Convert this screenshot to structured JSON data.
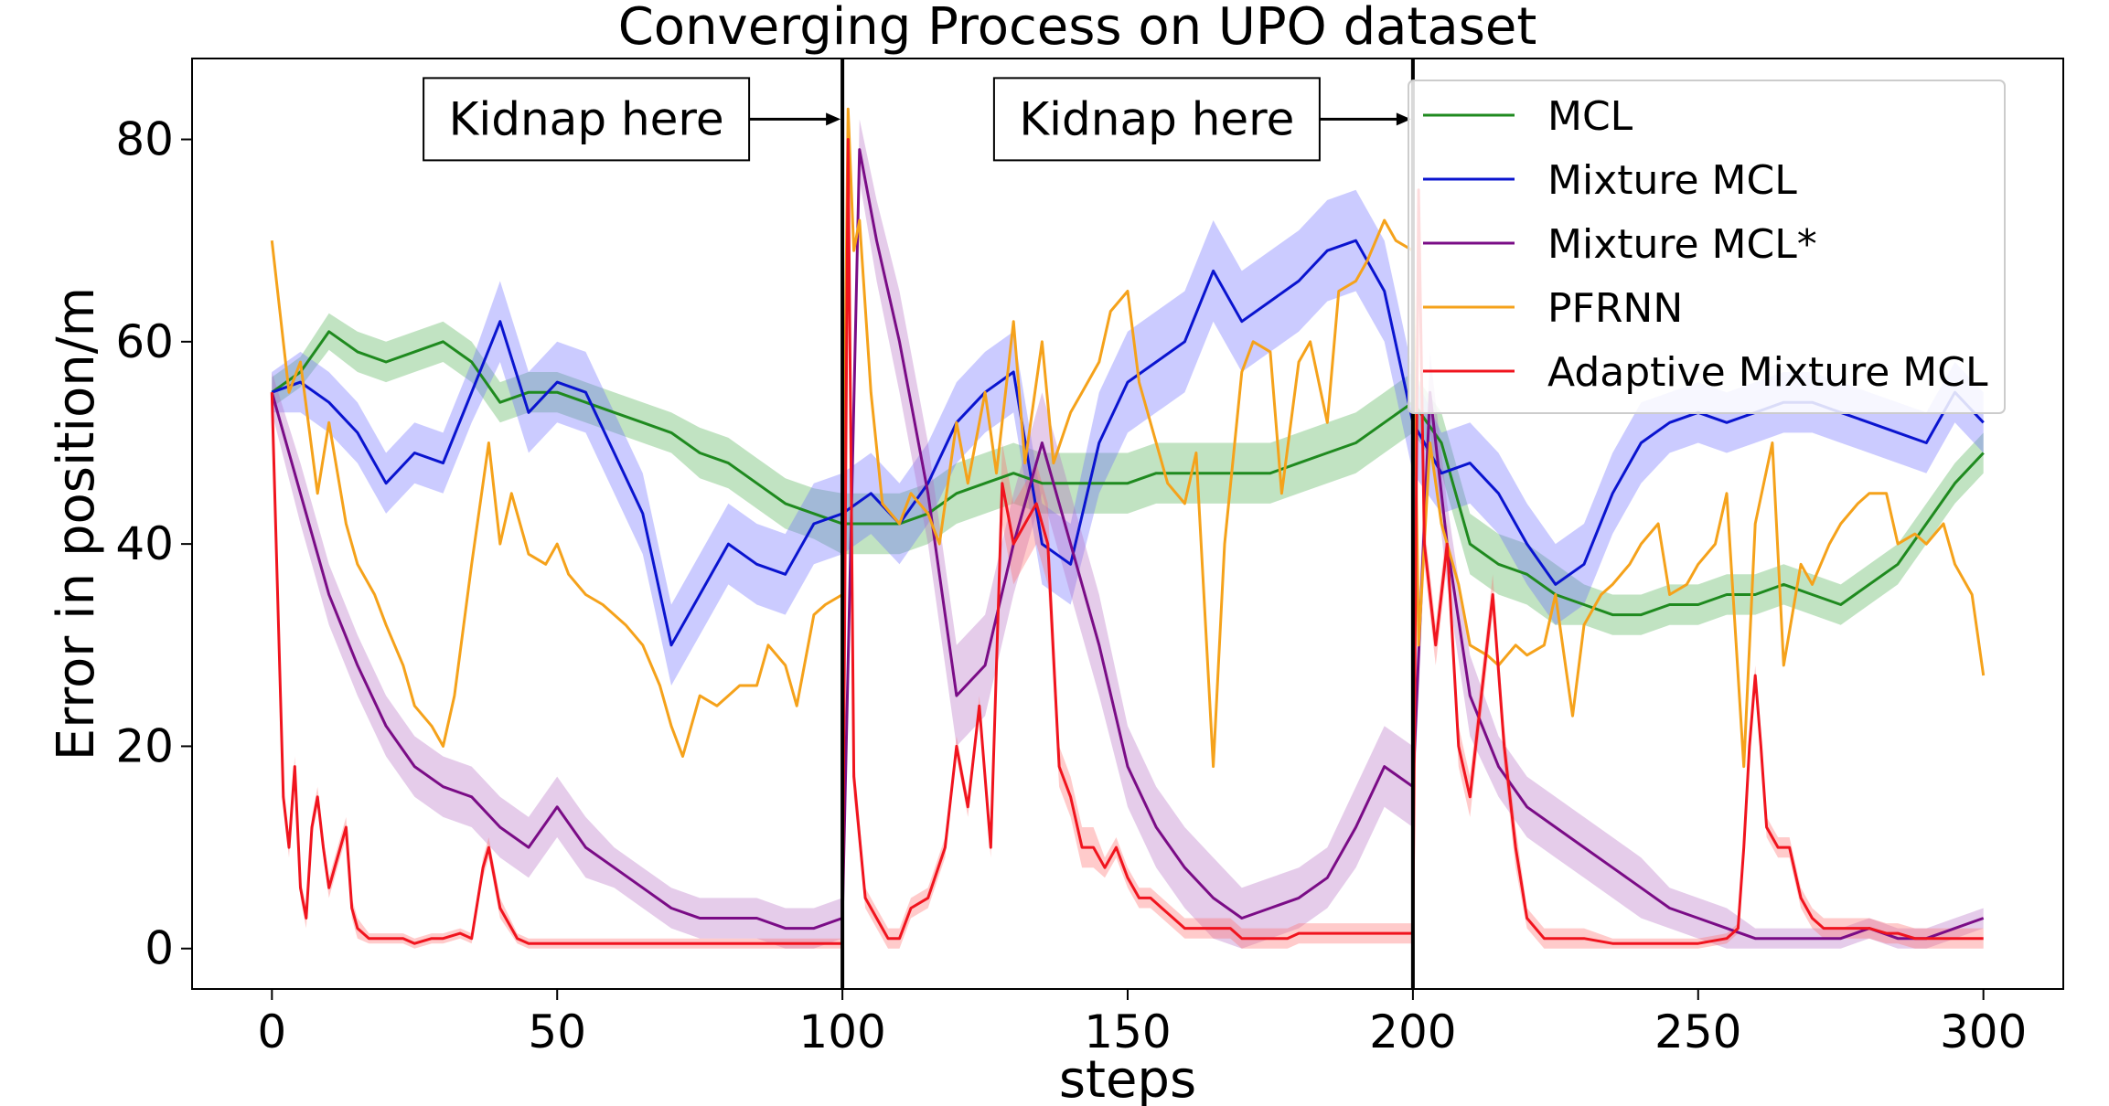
{
  "chart_data": {
    "type": "line",
    "title": "Converging Process on UPO dataset",
    "xlabel": "steps",
    "ylabel": "Error in position/m",
    "xlim": [
      -14,
      314
    ],
    "ylim": [
      -4,
      88
    ],
    "xticks": [
      0,
      50,
      100,
      150,
      200,
      250,
      300
    ],
    "yticks": [
      0,
      20,
      40,
      60,
      80
    ],
    "grid": false,
    "legend_position": "top-right",
    "annotations": [
      {
        "text": "Kidnap here",
        "arrow_to_x": 100,
        "y": 82
      },
      {
        "text": "Kidnap here",
        "arrow_to_x": 200,
        "y": 82
      }
    ],
    "vlines": [
      100,
      200
    ],
    "series": [
      {
        "name": "MCL",
        "color": "#1f8a1f",
        "band_color": "#4caf50",
        "x": [
          0,
          5,
          10,
          15,
          20,
          25,
          30,
          35,
          40,
          45,
          50,
          55,
          60,
          65,
          70,
          75,
          80,
          85,
          90,
          95,
          100,
          105,
          110,
          115,
          120,
          125,
          130,
          135,
          140,
          145,
          150,
          155,
          160,
          165,
          170,
          175,
          180,
          185,
          190,
          195,
          200,
          205,
          210,
          215,
          220,
          225,
          230,
          235,
          240,
          245,
          250,
          255,
          260,
          265,
          270,
          275,
          280,
          285,
          290,
          295,
          300
        ],
        "y": [
          55,
          57,
          61,
          59,
          58,
          59,
          60,
          58,
          54,
          55,
          55,
          54,
          53,
          52,
          51,
          49,
          48,
          46,
          44,
          43,
          42,
          42,
          42,
          43,
          45,
          46,
          47,
          46,
          46,
          46,
          46,
          47,
          47,
          47,
          47,
          47,
          48,
          49,
          50,
          52,
          54,
          50,
          40,
          38,
          37,
          35,
          34,
          33,
          33,
          34,
          34,
          35,
          35,
          36,
          35,
          34,
          36,
          38,
          42,
          46,
          49
        ],
        "band": [
          1.5,
          1.5,
          1.8,
          2,
          2,
          2,
          2,
          2,
          2,
          2,
          2,
          2,
          2,
          2,
          2,
          2.5,
          2.5,
          2.5,
          2.5,
          2.5,
          3,
          3,
          3,
          3,
          3,
          3,
          3,
          3,
          3,
          3,
          3,
          3,
          3,
          3,
          3,
          3,
          3,
          3,
          3,
          3,
          3,
          3,
          3,
          3,
          3,
          3,
          2,
          2,
          2,
          2,
          2,
          2,
          2,
          2,
          2,
          2,
          2,
          2,
          2,
          2,
          2
        ]
      },
      {
        "name": "Mixture MCL",
        "color": "#0a14cf",
        "band_color": "#6b6bff",
        "x": [
          0,
          5,
          10,
          15,
          20,
          25,
          30,
          35,
          40,
          45,
          50,
          55,
          60,
          65,
          70,
          75,
          80,
          85,
          90,
          95,
          100,
          105,
          110,
          115,
          120,
          125,
          130,
          135,
          140,
          145,
          150,
          155,
          160,
          165,
          170,
          175,
          180,
          185,
          190,
          195,
          200,
          205,
          210,
          215,
          220,
          225,
          230,
          235,
          240,
          245,
          250,
          255,
          260,
          265,
          270,
          275,
          280,
          285,
          290,
          295,
          300
        ],
        "y": [
          55,
          56,
          54,
          51,
          46,
          49,
          48,
          55,
          62,
          53,
          56,
          55,
          49,
          43,
          30,
          35,
          40,
          38,
          37,
          42,
          43,
          45,
          42,
          46,
          52,
          55,
          57,
          40,
          38,
          50,
          56,
          58,
          60,
          67,
          62,
          64,
          66,
          69,
          70,
          65,
          52,
          47,
          48,
          45,
          40,
          36,
          38,
          45,
          50,
          52,
          53,
          52,
          53,
          54,
          54,
          53,
          52,
          51,
          50,
          55,
          52
        ],
        "band": [
          2,
          3,
          3,
          3,
          3,
          3,
          3,
          3,
          4,
          4,
          4,
          4,
          4,
          4,
          4,
          4,
          4,
          4,
          4,
          4,
          4,
          4,
          4,
          4,
          4,
          4,
          4,
          4,
          4,
          5,
          5,
          5,
          5,
          5,
          5,
          5,
          5,
          5,
          5,
          5,
          5,
          4,
          4,
          4,
          4,
          4,
          4,
          4,
          4,
          3,
          3,
          3,
          3,
          3,
          3,
          3,
          3,
          3,
          3,
          3,
          3
        ]
      },
      {
        "name": "Mixture MCL*",
        "color": "#7a0c86",
        "band_color": "#b46dc4",
        "x": [
          0,
          5,
          10,
          15,
          20,
          25,
          30,
          35,
          40,
          45,
          50,
          55,
          60,
          65,
          70,
          75,
          80,
          85,
          90,
          95,
          100,
          103,
          106,
          110,
          115,
          120,
          125,
          130,
          135,
          140,
          145,
          150,
          155,
          160,
          165,
          170,
          175,
          180,
          185,
          190,
          195,
          200,
          203,
          206,
          210,
          215,
          220,
          225,
          230,
          235,
          240,
          245,
          250,
          255,
          260,
          265,
          270,
          275,
          280,
          285,
          290,
          295,
          300
        ],
        "y": [
          55,
          45,
          35,
          28,
          22,
          18,
          16,
          15,
          12,
          10,
          14,
          10,
          8,
          6,
          4,
          3,
          3,
          3,
          2,
          2,
          3,
          79,
          70,
          60,
          45,
          25,
          28,
          40,
          50,
          40,
          30,
          18,
          12,
          8,
          5,
          3,
          4,
          5,
          7,
          12,
          18,
          16,
          55,
          40,
          25,
          18,
          14,
          12,
          10,
          8,
          6,
          4,
          3,
          2,
          1,
          1,
          1,
          1,
          2,
          1,
          1,
          2,
          3
        ],
        "band": [
          2,
          3,
          3,
          3,
          3,
          3,
          3,
          3,
          3,
          3,
          3,
          3,
          2,
          2,
          2,
          2,
          2,
          2,
          2,
          2,
          2,
          3,
          4,
          5,
          5,
          5,
          5,
          5,
          5,
          5,
          5,
          4,
          4,
          4,
          4,
          3,
          3,
          3,
          3,
          4,
          4,
          4,
          4,
          4,
          4,
          3,
          3,
          3,
          3,
          3,
          3,
          2,
          2,
          2,
          1,
          1,
          1,
          1,
          1,
          1,
          1,
          1,
          1
        ]
      },
      {
        "name": "PFRNN",
        "color": "#f5a21b",
        "band_color": "#f5a21b",
        "x": [
          0,
          3,
          5,
          8,
          10,
          13,
          15,
          18,
          20,
          23,
          25,
          28,
          30,
          32,
          35,
          38,
          40,
          42,
          45,
          48,
          50,
          52,
          55,
          58,
          60,
          62,
          65,
          68,
          70,
          72,
          75,
          78,
          80,
          82,
          85,
          87,
          90,
          92,
          95,
          97,
          100,
          101,
          102,
          103,
          105,
          107,
          110,
          112,
          115,
          117,
          120,
          122,
          125,
          127,
          130,
          132,
          135,
          137,
          140,
          142,
          145,
          147,
          150,
          152,
          155,
          157,
          160,
          162,
          165,
          167,
          170,
          172,
          175,
          177,
          180,
          182,
          185,
          187,
          190,
          192,
          195,
          197,
          200,
          201,
          203,
          205,
          208,
          210,
          213,
          215,
          218,
          220,
          223,
          225,
          228,
          230,
          233,
          235,
          238,
          240,
          243,
          245,
          248,
          250,
          253,
          255,
          258,
          260,
          263,
          265,
          268,
          270,
          273,
          275,
          278,
          280,
          283,
          285,
          288,
          290,
          293,
          295,
          298,
          300
        ],
        "y": [
          70,
          55,
          58,
          45,
          52,
          42,
          38,
          35,
          32,
          28,
          24,
          22,
          20,
          25,
          38,
          50,
          40,
          45,
          39,
          38,
          40,
          37,
          35,
          34,
          33,
          32,
          30,
          26,
          22,
          19,
          25,
          24,
          25,
          26,
          26,
          30,
          28,
          24,
          33,
          34,
          35,
          83,
          69,
          72,
          55,
          44,
          42,
          45,
          43,
          40,
          52,
          46,
          55,
          47,
          62,
          48,
          60,
          48,
          53,
          55,
          58,
          63,
          65,
          56,
          50,
          46,
          44,
          49,
          18,
          40,
          57,
          60,
          59,
          45,
          58,
          60,
          52,
          65,
          66,
          68,
          72,
          70,
          69,
          30,
          50,
          42,
          36,
          30,
          29,
          28,
          30,
          29,
          30,
          35,
          23,
          32,
          35,
          36,
          38,
          40,
          42,
          35,
          36,
          38,
          40,
          45,
          18,
          42,
          50,
          28,
          38,
          36,
          40,
          42,
          44,
          45,
          45,
          40,
          41,
          40,
          42,
          38,
          35,
          27
        ],
        "band": []
      },
      {
        "name": "Adaptive Mixture MCL",
        "color": "#f0141e",
        "band_color": "#ff6b6b",
        "x": [
          0,
          2,
          3,
          4,
          5,
          6,
          7,
          8,
          9,
          10,
          11,
          12,
          13,
          14,
          15,
          17,
          20,
          23,
          25,
          28,
          30,
          33,
          35,
          37,
          38,
          40,
          43,
          45,
          48,
          50,
          55,
          60,
          65,
          70,
          75,
          80,
          85,
          90,
          95,
          100,
          101,
          102,
          104,
          106,
          108,
          110,
          112,
          115,
          118,
          120,
          122,
          124,
          126,
          128,
          130,
          132,
          134,
          136,
          138,
          140,
          142,
          144,
          146,
          148,
          150,
          152,
          154,
          156,
          158,
          160,
          163,
          165,
          168,
          170,
          173,
          175,
          178,
          180,
          183,
          185,
          188,
          190,
          193,
          195,
          198,
          200,
          201,
          202,
          204,
          206,
          208,
          210,
          212,
          214,
          216,
          218,
          220,
          223,
          225,
          228,
          230,
          235,
          240,
          245,
          250,
          255,
          257,
          258,
          259,
          260,
          261,
          262,
          264,
          266,
          268,
          270,
          272,
          275,
          278,
          280,
          283,
          285,
          288,
          290,
          293,
          295,
          298,
          300
        ],
        "y": [
          55,
          15,
          10,
          18,
          6,
          3,
          12,
          15,
          10,
          6,
          8,
          10,
          12,
          4,
          2,
          1,
          1,
          1,
          0.5,
          1,
          1,
          1.5,
          1,
          8,
          10,
          4,
          1,
          0.5,
          0.5,
          0.5,
          0.5,
          0.5,
          0.5,
          0.5,
          0.5,
          0.5,
          0.5,
          0.5,
          0.5,
          0.5,
          80,
          17,
          5,
          3,
          1,
          1,
          4,
          5,
          10,
          20,
          14,
          24,
          10,
          46,
          40,
          42,
          44,
          40,
          18,
          15,
          10,
          10,
          8,
          10,
          7,
          5,
          5,
          4,
          3,
          2,
          2,
          2,
          2,
          1,
          1,
          1,
          1,
          1.5,
          1.5,
          1.5,
          1.5,
          1.5,
          1.5,
          1.5,
          1.5,
          1.5,
          75,
          40,
          30,
          40,
          20,
          15,
          25,
          35,
          20,
          10,
          3,
          1,
          1,
          1,
          1,
          0.5,
          0.5,
          0.5,
          0.5,
          1,
          2,
          10,
          20,
          27,
          20,
          12,
          10,
          10,
          5,
          3,
          2,
          2,
          2,
          2,
          1.5,
          1.5,
          1,
          1,
          1,
          1,
          1,
          1
        ],
        "band": [
          1,
          1,
          1,
          1,
          1,
          1,
          1,
          1,
          1,
          1,
          1,
          1,
          1,
          1,
          1,
          0.5,
          0.5,
          0.5,
          0.5,
          0.5,
          0.5,
          0.5,
          0.5,
          1,
          1,
          1,
          0.5,
          0.5,
          0.5,
          0.5,
          0.5,
          0.5,
          0.5,
          0.5,
          0.5,
          0.5,
          0.5,
          0.5,
          0.5,
          0.5,
          2,
          2,
          1,
          1,
          1,
          1,
          1,
          1,
          1,
          1,
          1,
          1,
          1,
          4,
          4,
          4,
          4,
          4,
          2,
          2,
          2,
          2,
          1,
          1,
          1,
          1,
          1,
          1,
          1,
          1,
          1,
          1,
          1,
          1,
          1,
          1,
          1,
          1,
          1,
          1,
          1,
          1,
          1,
          1,
          1,
          1,
          2,
          2,
          2,
          2,
          2,
          2,
          2,
          2,
          2,
          2,
          1,
          1,
          1,
          1,
          1,
          0.5,
          0.5,
          0.5,
          0.5,
          0.5,
          0.5,
          1,
          1,
          1,
          1,
          1,
          1,
          1,
          1,
          1,
          1,
          1,
          1,
          1,
          1,
          1,
          1,
          1,
          1,
          1,
          1,
          1
        ]
      }
    ]
  }
}
